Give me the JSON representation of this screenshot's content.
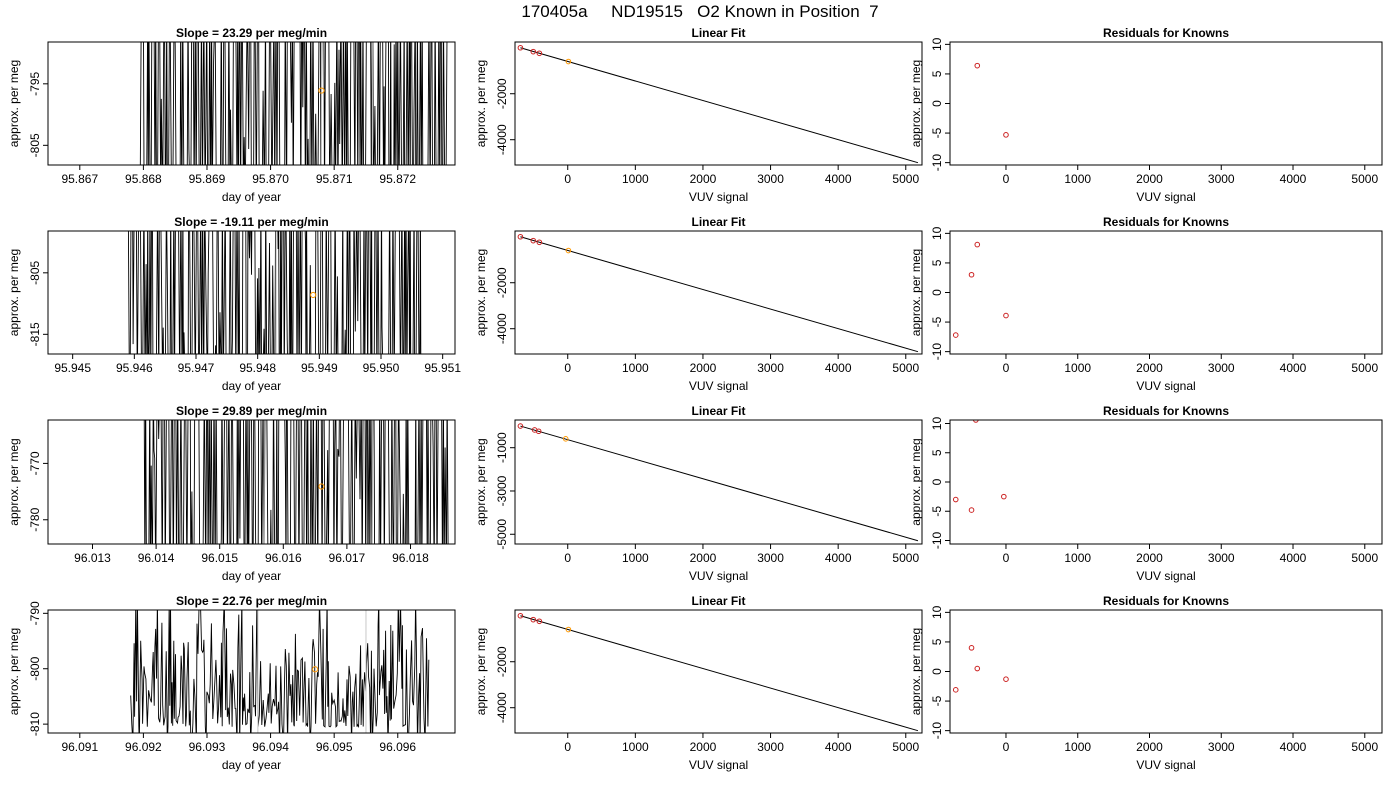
{
  "page": {
    "title": "170405a     ND19515   O2 Known in Position  7"
  },
  "colors": {
    "trace": "#000000",
    "trace_light": "#c8c8c8",
    "known_point": "#ff9900",
    "residual_point": "#cc2222",
    "fit_line": "#000000"
  },
  "chart_data": [
    {
      "type": "line",
      "panel": "time-series",
      "row": 1,
      "title": "Slope =  23.29  per meg/min",
      "xlabel": "day of year",
      "ylabel": "approx. per meg",
      "xlim": [
        95.8665,
        95.8729
      ],
      "ylim": [
        -808.2,
        -788.2
      ],
      "xticks": [
        "95.867",
        "95.868",
        "95.869",
        "95.870",
        "95.871",
        "95.872"
      ],
      "yticks": [
        "-795",
        "-805"
      ],
      "trace_start": 95.8679,
      "trace_end": 95.8728,
      "trace_seed": 7,
      "light_segments": [
        [
          95.8708,
          95.8713
        ],
        [
          95.8716,
          95.8717
        ]
      ],
      "highlight_point": {
        "x": 95.8708,
        "y": -796.1
      }
    },
    {
      "type": "scatter",
      "panel": "linear-fit",
      "row": 1,
      "title": "Linear Fit",
      "xlabel": "VUV signal",
      "ylabel": "approx. per meg",
      "xlim": [
        -780,
        5240
      ],
      "ylim": [
        -5100,
        250
      ],
      "xticks": [
        "0",
        "1000",
        "2000",
        "3000",
        "4000",
        "5000"
      ],
      "yticks": [
        "-2000",
        "-4000"
      ],
      "fit_line": {
        "x": [
          -700,
          5180
        ],
        "y": [
          0,
          -5000
        ]
      },
      "knowns": [
        {
          "x": -700,
          "y": 0
        },
        {
          "x": -510,
          "y": -170
        },
        {
          "x": -420,
          "y": -240
        }
      ],
      "sample_point": {
        "x": 10,
        "y": -600
      }
    },
    {
      "type": "scatter",
      "panel": "residuals",
      "row": 1,
      "title": "Residuals for Knowns",
      "xlabel": "VUV signal",
      "ylabel": "approx. per meg",
      "xlim": [
        -780,
        5240
      ],
      "ylim": [
        -10.4,
        10.4
      ],
      "xticks": [
        "0",
        "1000",
        "2000",
        "3000",
        "4000",
        "5000"
      ],
      "yticks": [
        "10",
        "5",
        "0",
        "-5",
        "-10"
      ],
      "points": [
        {
          "x": -400,
          "y": 6.4
        },
        {
          "x": 0,
          "y": -5.3
        }
      ]
    },
    {
      "type": "line",
      "panel": "time-series",
      "row": 2,
      "title": "Slope =  -19.11  per meg/min",
      "xlabel": "day of year",
      "ylabel": "approx. per meg",
      "xlim": [
        95.9446,
        95.9512
      ],
      "ylim": [
        -818.2,
        -798.2
      ],
      "xticks": [
        "95.945",
        "95.946",
        "95.947",
        "95.948",
        "95.949",
        "95.950",
        "95.951"
      ],
      "yticks": [
        "-805",
        "-815"
      ],
      "trace_start": 95.9459,
      "trace_end": 95.9507,
      "trace_seed": 19,
      "light_segments": [
        [
          95.9483,
          95.9485
        ]
      ],
      "highlight_point": {
        "x": 95.9489,
        "y": -808.6
      }
    },
    {
      "type": "scatter",
      "panel": "linear-fit",
      "row": 2,
      "title": "Linear Fit",
      "xlabel": "VUV signal",
      "ylabel": "approx. per meg",
      "xlim": [
        -780,
        5240
      ],
      "ylim": [
        -5100,
        250
      ],
      "xticks": [
        "0",
        "1000",
        "2000",
        "3000",
        "4000",
        "5000"
      ],
      "yticks": [
        "-2000",
        "-4000"
      ],
      "fit_line": {
        "x": [
          -700,
          5180
        ],
        "y": [
          0,
          -5000
        ]
      },
      "knowns": [
        {
          "x": -700,
          "y": 0
        },
        {
          "x": -510,
          "y": -170
        },
        {
          "x": -420,
          "y": -240
        }
      ],
      "sample_point": {
        "x": 10,
        "y": -600
      }
    },
    {
      "type": "scatter",
      "panel": "residuals",
      "row": 2,
      "title": "Residuals for Knowns",
      "xlabel": "VUV signal",
      "ylabel": "approx. per meg",
      "xlim": [
        -780,
        5240
      ],
      "ylim": [
        -10.4,
        10.4
      ],
      "xticks": [
        "0",
        "1000",
        "2000",
        "3000",
        "4000",
        "5000"
      ],
      "yticks": [
        "10",
        "5",
        "0",
        "-5",
        "-10"
      ],
      "points": [
        {
          "x": -700,
          "y": -7.2
        },
        {
          "x": -480,
          "y": 3.0
        },
        {
          "x": -400,
          "y": 8.1
        },
        {
          "x": 0,
          "y": -3.9
        }
      ]
    },
    {
      "type": "line",
      "panel": "time-series",
      "row": 3,
      "title": "Slope =  29.89  per meg/min",
      "xlabel": "day of year",
      "ylabel": "approx. per meg",
      "xlim": [
        96.0123,
        96.0187
      ],
      "ylim": [
        -784.3,
        -762.3
      ],
      "xticks": [
        "96.013",
        "96.014",
        "96.015",
        "96.016",
        "96.017",
        "96.018"
      ],
      "yticks": [
        "-770",
        "-780"
      ],
      "trace_start": 96.0138,
      "trace_end": 96.0186,
      "trace_seed": 29,
      "light_segments": [
        [
          96.0157,
          96.016
        ],
        [
          96.0174,
          96.0175
        ]
      ],
      "highlight_point": {
        "x": 96.0166,
        "y": -774.1
      }
    },
    {
      "type": "scatter",
      "panel": "linear-fit",
      "row": 3,
      "title": "Linear Fit",
      "xlabel": "VUV signal",
      "ylabel": "approx. per meg",
      "xlim": [
        -780,
        5240
      ],
      "ylim": [
        -5450,
        280
      ],
      "xticks": [
        "0",
        "1000",
        "2000",
        "3000",
        "4000",
        "5000"
      ],
      "yticks": [
        "-1000",
        "-3000",
        "-5000"
      ],
      "fit_line": {
        "x": [
          -700,
          5180
        ],
        "y": [
          0,
          -5300
        ]
      },
      "knowns": [
        {
          "x": -700,
          "y": 0
        },
        {
          "x": -490,
          "y": -180
        },
        {
          "x": -430,
          "y": -240
        }
      ],
      "sample_point": {
        "x": -30,
        "y": -590
      }
    },
    {
      "type": "scatter",
      "panel": "residuals",
      "row": 3,
      "title": "Residuals for Knowns",
      "xlabel": "VUV signal",
      "ylabel": "approx. per meg",
      "xlim": [
        -780,
        5240
      ],
      "ylim": [
        -10.6,
        10.6
      ],
      "xticks": [
        "0",
        "1000",
        "2000",
        "3000",
        "4000",
        "5000"
      ],
      "yticks": [
        "10",
        "5",
        "0",
        "-5",
        "-10"
      ],
      "points": [
        {
          "x": -700,
          "y": -3.0
        },
        {
          "x": -480,
          "y": -4.8
        },
        {
          "x": -420,
          "y": 10.6
        },
        {
          "x": -30,
          "y": -2.5
        }
      ]
    },
    {
      "type": "line",
      "panel": "time-series",
      "row": 4,
      "title": "Slope =  22.76  per meg/min",
      "xlabel": "day of year",
      "ylabel": "approx. per meg",
      "xlim": [
        96.0905,
        96.0969
      ],
      "ylim": [
        -811.6,
        -789.4
      ],
      "xticks": [
        "96.091",
        "96.092",
        "96.093",
        "96.094",
        "96.095",
        "96.096"
      ],
      "yticks": [
        "-790",
        "-800",
        "-810"
      ],
      "trace_start": 96.0918,
      "trace_end": 96.0965,
      "trace_seed": 22,
      "light_segments": [
        [
          96.0938,
          96.0939
        ],
        [
          96.0955,
          96.0956
        ]
      ],
      "highlight_point": {
        "x": 96.0947,
        "y": -800.1
      }
    },
    {
      "type": "scatter",
      "panel": "linear-fit",
      "row": 4,
      "title": "Linear Fit",
      "xlabel": "VUV signal",
      "ylabel": "approx. per meg",
      "xlim": [
        -780,
        5240
      ],
      "ylim": [
        -5100,
        250
      ],
      "xticks": [
        "0",
        "1000",
        "2000",
        "3000",
        "4000",
        "5000"
      ],
      "yticks": [
        "-2000",
        "-4000"
      ],
      "fit_line": {
        "x": [
          -700,
          5180
        ],
        "y": [
          0,
          -5000
        ]
      },
      "knowns": [
        {
          "x": -700,
          "y": 0
        },
        {
          "x": -510,
          "y": -170
        },
        {
          "x": -420,
          "y": -240
        }
      ],
      "sample_point": {
        "x": 10,
        "y": -600
      }
    },
    {
      "type": "scatter",
      "panel": "residuals",
      "row": 4,
      "title": "Residuals for Knowns",
      "xlabel": "VUV signal",
      "ylabel": "approx. per meg",
      "xlim": [
        -780,
        5240
      ],
      "ylim": [
        -10.4,
        10.4
      ],
      "xticks": [
        "0",
        "1000",
        "2000",
        "3000",
        "4000",
        "5000"
      ],
      "yticks": [
        "10",
        "5",
        "0",
        "-5",
        "-10"
      ],
      "points": [
        {
          "x": -700,
          "y": -3.1
        },
        {
          "x": -480,
          "y": 4.0
        },
        {
          "x": -400,
          "y": 0.5
        },
        {
          "x": 0,
          "y": -1.3
        }
      ]
    }
  ]
}
